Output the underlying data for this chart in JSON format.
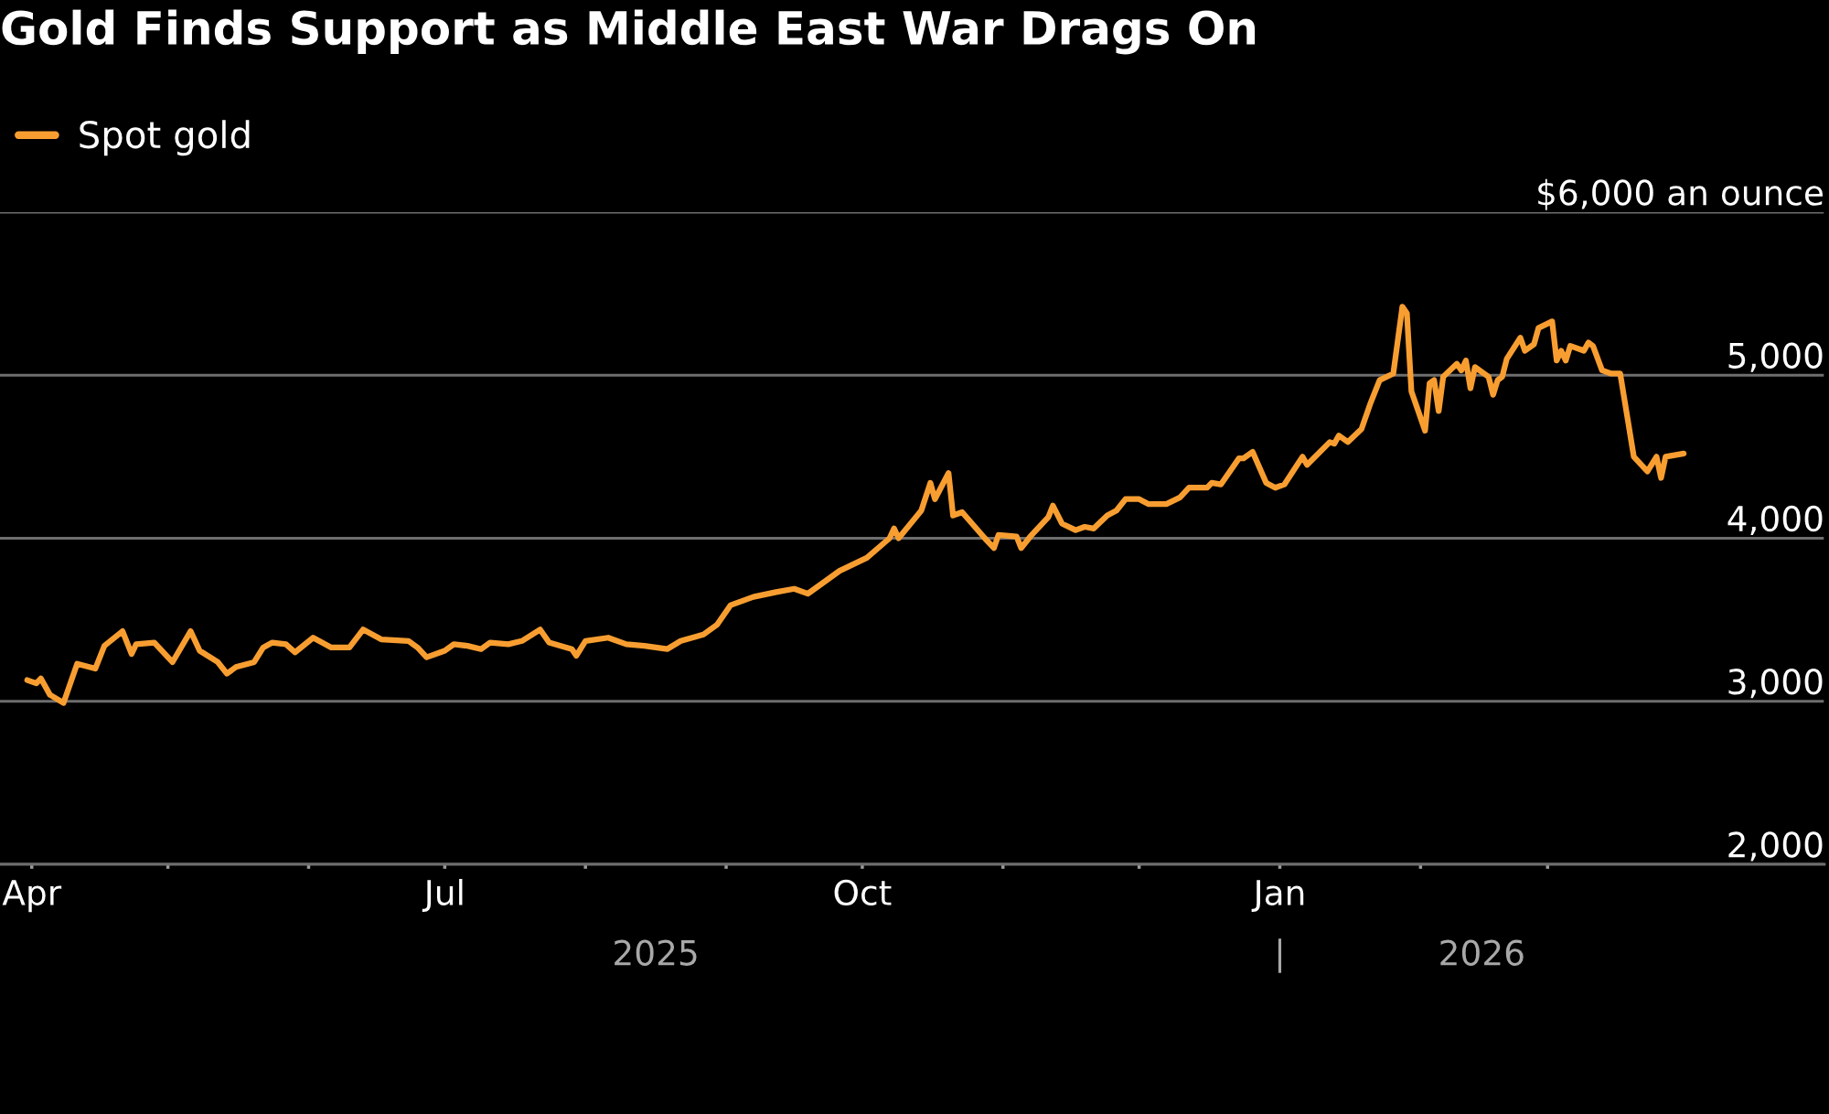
{
  "chart_data": {
    "type": "line",
    "title": "Gold Finds Support as Middle East War Drags On",
    "series": [
      {
        "name": "Spot gold",
        "color": "#f89e31",
        "x": [
          "2025-03-31",
          "2025-04-02",
          "2025-04-03",
          "2025-04-05",
          "2025-04-08",
          "2025-04-11",
          "2025-04-15",
          "2025-04-17",
          "2025-04-21",
          "2025-04-23",
          "2025-04-24",
          "2025-04-28",
          "2025-05-02",
          "2025-05-06",
          "2025-05-08",
          "2025-05-12",
          "2025-05-14",
          "2025-05-16",
          "2025-05-20",
          "2025-05-22",
          "2025-05-24",
          "2025-05-27",
          "2025-05-29",
          "2025-06-02",
          "2025-06-06",
          "2025-06-10",
          "2025-06-13",
          "2025-06-17",
          "2025-06-23",
          "2025-06-25",
          "2025-06-27",
          "2025-07-01",
          "2025-07-03",
          "2025-07-06",
          "2025-07-09",
          "2025-07-11",
          "2025-07-15",
          "2025-07-18",
          "2025-07-22",
          "2025-07-24",
          "2025-07-29",
          "2025-07-30",
          "2025-08-01",
          "2025-08-06",
          "2025-08-10",
          "2025-08-14",
          "2025-08-19",
          "2025-08-22",
          "2025-08-27",
          "2025-08-30",
          "2025-09-02",
          "2025-09-07",
          "2025-09-12",
          "2025-09-16",
          "2025-09-19",
          "2025-09-23",
          "2025-09-26",
          "2025-10-02",
          "2025-10-07",
          "2025-10-08",
          "2025-10-09",
          "2025-10-14",
          "2025-10-16",
          "2025-10-17",
          "2025-10-20",
          "2025-10-21",
          "2025-10-23",
          "2025-10-28",
          "2025-10-30",
          "2025-10-31",
          "2025-11-04",
          "2025-11-05",
          "2025-11-07",
          "2025-11-11",
          "2025-11-12",
          "2025-11-14",
          "2025-11-17",
          "2025-11-19",
          "2025-11-21",
          "2025-11-24",
          "2025-11-26",
          "2025-11-28",
          "2025-12-01",
          "2025-12-03",
          "2025-12-07",
          "2025-12-10",
          "2025-12-12",
          "2025-12-16",
          "2025-12-17",
          "2025-12-19",
          "2025-12-23",
          "2025-12-24",
          "2025-12-26",
          "2025-12-29",
          "2025-12-31",
          "2026-01-02",
          "2026-01-06",
          "2026-01-07",
          "2026-01-12",
          "2026-01-13",
          "2026-01-14",
          "2026-01-16",
          "2026-01-19",
          "2026-01-21",
          "2026-01-23",
          "2026-01-26",
          "2026-01-28",
          "2026-01-29",
          "2026-01-30",
          "2026-02-02",
          "2026-02-03",
          "2026-02-04",
          "2026-02-05",
          "2026-02-06",
          "2026-02-09",
          "2026-02-10",
          "2026-02-11",
          "2026-02-12",
          "2026-02-13",
          "2026-02-16",
          "2026-02-17",
          "2026-02-18",
          "2026-02-19",
          "2026-02-20",
          "2026-02-23",
          "2026-02-24",
          "2026-02-26",
          "2026-02-27",
          "2026-03-02",
          "2026-03-03",
          "2026-03-04",
          "2026-03-05",
          "2026-03-06",
          "2026-03-09",
          "2026-03-10",
          "2026-03-11",
          "2026-03-13",
          "2026-03-15",
          "2026-03-17",
          "2026-03-20",
          "2026-03-23",
          "2026-03-25",
          "2026-03-26",
          "2026-03-27",
          "2026-03-31"
        ],
        "values": [
          3130,
          3110,
          3140,
          3040,
          2990,
          3230,
          3200,
          3340,
          3430,
          3290,
          3350,
          3360,
          3240,
          3430,
          3310,
          3240,
          3170,
          3210,
          3240,
          3330,
          3360,
          3350,
          3300,
          3390,
          3330,
          3330,
          3440,
          3380,
          3370,
          3330,
          3270,
          3310,
          3350,
          3340,
          3320,
          3360,
          3350,
          3370,
          3440,
          3360,
          3320,
          3280,
          3370,
          3390,
          3350,
          3340,
          3320,
          3370,
          3410,
          3470,
          3590,
          3640,
          3670,
          3690,
          3660,
          3740,
          3800,
          3880,
          4000,
          4060,
          4000,
          4170,
          4340,
          4240,
          4400,
          4140,
          4160,
          4000,
          3940,
          4020,
          4010,
          3940,
          4010,
          4130,
          4200,
          4090,
          4050,
          4070,
          4060,
          4140,
          4170,
          4240,
          4240,
          4210,
          4210,
          4250,
          4310,
          4310,
          4340,
          4330,
          4490,
          4490,
          4530,
          4340,
          4310,
          4330,
          4500,
          4450,
          4590,
          4580,
          4630,
          4590,
          4670,
          4830,
          4970,
          5010,
          5420,
          5380,
          4900,
          4660,
          4950,
          4970,
          4780,
          4990,
          5070,
          5030,
          5090,
          4920,
          5050,
          4990,
          4880,
          4970,
          4990,
          5100,
          5230,
          5150,
          5190,
          5290,
          5330,
          5090,
          5150,
          5090,
          5180,
          5150,
          5200,
          5180,
          5030,
          5010,
          5010,
          4500,
          4410,
          4500,
          4370,
          4500,
          4520
        ]
      }
    ],
    "ylim": [
      2000,
      6000
    ],
    "yticks": [
      {
        "value": 2000,
        "label": "2,000"
      },
      {
        "value": 3000,
        "label": "3,000"
      },
      {
        "value": 4000,
        "label": "4,000"
      },
      {
        "value": 5000,
        "label": "5,000"
      },
      {
        "value": 6000,
        "label": "$6,000 an ounce"
      }
    ],
    "xlim": [
      "2025-03-25",
      "2026-05-01"
    ],
    "xticks": [
      {
        "value": "2025-04-01",
        "label": "Apr"
      },
      {
        "value": "2025-05-01",
        "label": null
      },
      {
        "value": "2025-06-01",
        "label": null
      },
      {
        "value": "2025-07-01",
        "label": "Jul"
      },
      {
        "value": "2025-08-01",
        "label": null
      },
      {
        "value": "2025-09-01",
        "label": null
      },
      {
        "value": "2025-10-01",
        "label": "Oct"
      },
      {
        "value": "2025-11-01",
        "label": null
      },
      {
        "value": "2025-12-01",
        "label": null
      },
      {
        "value": "2026-01-01",
        "label": "Jan"
      },
      {
        "value": "2026-02-01",
        "label": null
      },
      {
        "value": "2026-03-01",
        "label": null
      }
    ],
    "annotations": [
      "2025",
      "|",
      "2026"
    ],
    "grid": "y",
    "legend": "top left",
    "line_style": "solid",
    "marker": "none"
  }
}
